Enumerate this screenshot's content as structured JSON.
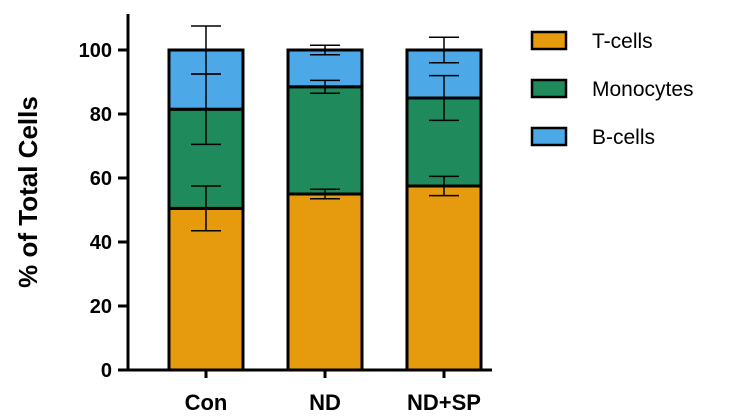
{
  "chart_data": {
    "type": "bar",
    "stacked": true,
    "categories": [
      "Con",
      "ND",
      "ND+SP"
    ],
    "ylabel": "% of Total Cells",
    "xlabel": "",
    "ylim": [
      0,
      110
    ],
    "yticks": [
      0,
      20,
      40,
      60,
      80,
      100
    ],
    "legend_position": "right",
    "series": [
      {
        "name": "T-cells",
        "color": "#E69A0E",
        "values": [
          50.5,
          55,
          57.5
        ],
        "err": [
          7,
          1.5,
          3
        ]
      },
      {
        "name": "Monocytes",
        "color": "#1F8A5B",
        "values": [
          31,
          33.5,
          27.5
        ],
        "err": [
          11,
          2,
          7
        ]
      },
      {
        "name": "B-cells",
        "color": "#4DA8E8",
        "values": [
          18.5,
          11.5,
          15
        ],
        "err": [
          7.5,
          1.5,
          4
        ]
      }
    ]
  }
}
